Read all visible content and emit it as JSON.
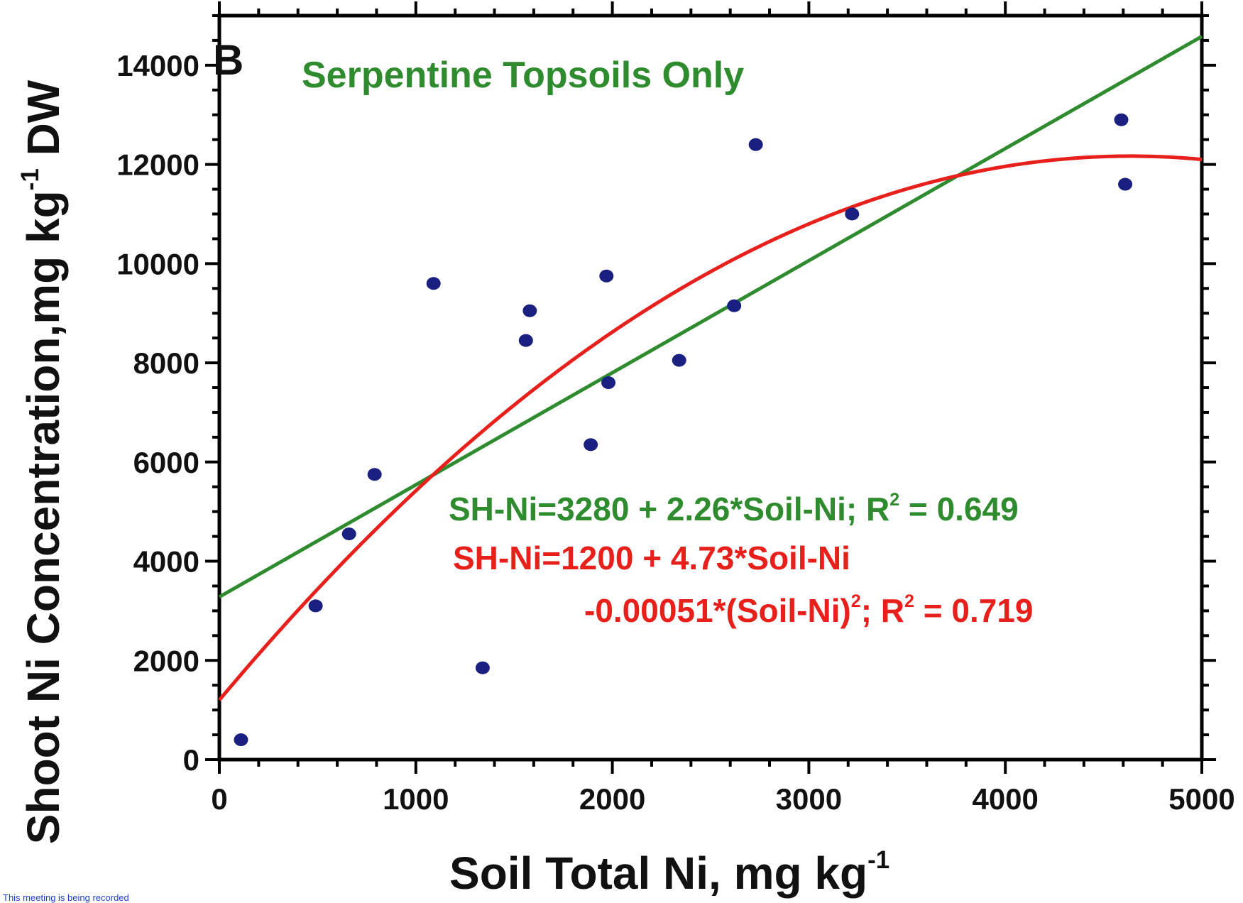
{
  "panel_label": "B",
  "chart_data": {
    "type": "scatter",
    "title": "Serpentine Topsoils Only",
    "xlabel": "Soil Total Ni, mg kg",
    "xlabel_superscript": "-1",
    "ylabel_parts": [
      "Shoot Ni Concentration,mg kg",
      "-1",
      " DW"
    ],
    "xlim": [
      0,
      5000
    ],
    "ylim": [
      0,
      15000
    ],
    "x_ticks": [
      0,
      1000,
      2000,
      3000,
      4000,
      5000
    ],
    "y_ticks": [
      0,
      2000,
      4000,
      6000,
      8000,
      10000,
      12000,
      14000
    ],
    "grid": false,
    "points": [
      {
        "x": 110,
        "y": 400
      },
      {
        "x": 490,
        "y": 3100
      },
      {
        "x": 660,
        "y": 4550
      },
      {
        "x": 790,
        "y": 5750
      },
      {
        "x": 1090,
        "y": 9600
      },
      {
        "x": 1340,
        "y": 1850
      },
      {
        "x": 1560,
        "y": 8450
      },
      {
        "x": 1580,
        "y": 9050
      },
      {
        "x": 1890,
        "y": 6350
      },
      {
        "x": 1970,
        "y": 9750
      },
      {
        "x": 1980,
        "y": 7600
      },
      {
        "x": 2340,
        "y": 8050
      },
      {
        "x": 2620,
        "y": 9150
      },
      {
        "x": 2730,
        "y": 12400
      },
      {
        "x": 3220,
        "y": 11000
      },
      {
        "x": 4590,
        "y": 12900
      },
      {
        "x": 4610,
        "y": 11600
      }
    ],
    "fits": [
      {
        "type": "linear",
        "intercept": 3280,
        "slope": 2.26,
        "color": "#2e8b2e",
        "equation_lines": [
          [
            "SH-Ni=3280 + 2.26*Soil-Ni; R",
            "2",
            " = 0.649"
          ]
        ]
      },
      {
        "type": "quadratic",
        "intercept": 1200,
        "linear": 4.73,
        "quadratic": -0.00051,
        "color": "#e8201c",
        "equation_lines": [
          [
            "SH-Ni=1200 + 4.73*Soil-Ni"
          ],
          [
            "-0.00051*(Soil-Ni)",
            "2",
            "; R",
            "2",
            " = 0.719"
          ]
        ]
      }
    ],
    "point_color": "#1a2080",
    "title_color": "#2e8b2e"
  },
  "footer": {
    "recording_notice": "This meeting is being recorded"
  }
}
